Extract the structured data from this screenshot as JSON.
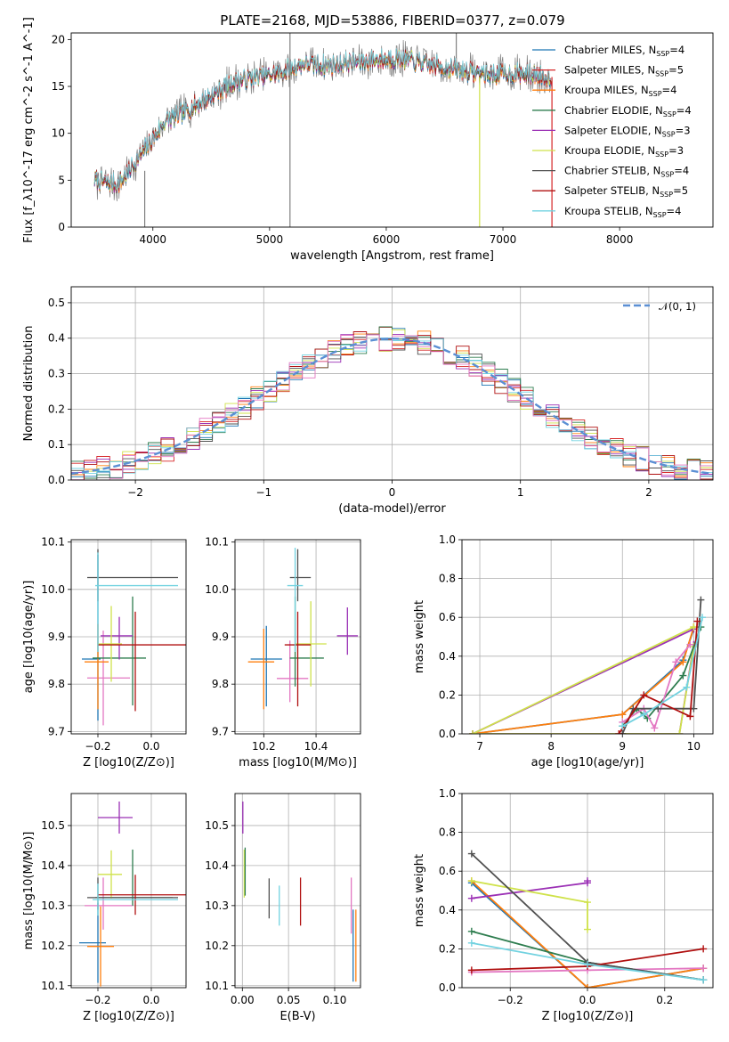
{
  "figure_title": "PLATE=2168, MJD=53886, FIBERID=0377, z=0.079",
  "models": [
    {
      "name": "Chabrier MILES",
      "n": "4",
      "color": "#1f77b4"
    },
    {
      "name": "Salpeter MILES",
      "n": "5",
      "color": "#d62728"
    },
    {
      "name": "Kroupa MILES",
      "n": "4",
      "color": "#ff7f0e"
    },
    {
      "name": "Chabrier ELODIE",
      "n": "4",
      "color": "#2e7d4f"
    },
    {
      "name": "Salpeter ELODIE",
      "n": "3",
      "color": "#9b30b5"
    },
    {
      "name": "Kroupa ELODIE",
      "n": "3",
      "color": "#cfe24a"
    },
    {
      "name": "Chabrier STELIB",
      "n": "4",
      "color": "#505050"
    },
    {
      "name": "Salpeter STELIB",
      "n": "5",
      "color": "#b01010"
    },
    {
      "name": "Kroupa STELIB",
      "n": "4",
      "color": "#72d2e0"
    }
  ],
  "chart_data": [
    {
      "id": "spectrum",
      "type": "line",
      "xlabel": "wavelength [Angstrom, rest frame]",
      "ylabel": "Flux [f_λ10^-17 erg cm^-2 s^-1 A^-1]",
      "xlim": [
        3300,
        8800
      ],
      "ylim": [
        0,
        20.7
      ],
      "xticks": [
        4000,
        5000,
        6000,
        7000,
        8000
      ],
      "yticks": [
        0,
        5,
        10,
        15,
        20
      ],
      "data_color": "#808080",
      "continuum": {
        "x": [
          3500,
          3700,
          3950,
          4100,
          4300,
          4500,
          4700,
          4900,
          5100,
          5300,
          5500,
          5700,
          5900,
          6100,
          6300,
          6500,
          6700,
          6900,
          7100,
          7300,
          7420
        ],
        "y": [
          5.0,
          4.5,
          8.5,
          11.2,
          12.5,
          14.0,
          15.5,
          16.0,
          16.5,
          17.5,
          17.2,
          17.6,
          17.8,
          18.0,
          17.5,
          17.0,
          16.6,
          16.3,
          16.4,
          16.2,
          16.0
        ]
      },
      "legend_position": "upper right"
    },
    {
      "id": "residuals",
      "type": "histogram",
      "xlabel": "(data-model)/error",
      "ylabel": "Normed distribution",
      "xlim": [
        -2.5,
        2.5
      ],
      "ylim": [
        0,
        0.545
      ],
      "xticks": [
        -2,
        -1,
        0,
        1,
        2
      ],
      "yticks": [
        0.0,
        0.1,
        0.2,
        0.3,
        0.4,
        0.5
      ],
      "bin_width": 0.1,
      "normal_label": "𝒩(0, 1)",
      "normal_color": "#5b8fd4",
      "legend_position": "upper right"
    },
    {
      "id": "age_vs_Z",
      "type": "errorbar",
      "xlabel": "Z [log10(Z/Z⊙)]",
      "ylabel": "age [log10(age/yr)]",
      "xlim": [
        -0.3,
        0.13
      ],
      "ylim": [
        9.695,
        10.105
      ],
      "xticks": [
        -0.2,
        0.0
      ],
      "yticks": [
        9.7,
        9.8,
        9.9,
        10.0,
        10.1
      ],
      "points": [
        {
          "x": -0.2,
          "xerr": [
            0.06,
            0.01
          ],
          "y": 9.853,
          "yerr": [
            0.13,
            0.22
          ],
          "color": "#1f77b4"
        },
        {
          "x": -0.18,
          "xerr": [
            0.06,
            0.1
          ],
          "y": 9.813,
          "yerr": [
            0.1,
            0.1
          ],
          "color": "#e377c2"
        },
        {
          "x": -0.2,
          "xerr": [
            0.05,
            0.04
          ],
          "y": 9.847,
          "yerr": [
            0.1,
            0.08
          ],
          "color": "#ff7f0e"
        },
        {
          "x": -0.07,
          "xerr": [
            0.15,
            0.05
          ],
          "y": 9.855,
          "yerr": [
            0.1,
            0.13
          ],
          "color": "#2e7d4f"
        },
        {
          "x": -0.12,
          "xerr": [
            0.07,
            0.05
          ],
          "y": 9.902,
          "yerr": [
            0.05,
            0.04
          ],
          "color": "#9b30b5"
        },
        {
          "x": -0.15,
          "xerr": [
            0.05,
            0.04
          ],
          "y": 9.885,
          "yerr": [
            0.08,
            0.08
          ],
          "color": "#cfe24a"
        },
        {
          "x": -0.2,
          "xerr": [
            0.04,
            0.3
          ],
          "y": 10.025,
          "yerr": [
            0.05,
            0.06
          ],
          "color": "#505050"
        },
        {
          "x": -0.06,
          "xerr": [
            0.14,
            0.19
          ],
          "y": 9.883,
          "yerr": [
            0.14,
            0.07
          ],
          "color": "#b01010"
        },
        {
          "x": -0.2,
          "xerr": [
            0.01,
            0.3
          ],
          "y": 10.008,
          "yerr": [
            0.14,
            0.07
          ],
          "color": "#72d2e0"
        }
      ]
    },
    {
      "id": "age_vs_mass",
      "type": "errorbar",
      "xlabel": "mass [log10(M/M⊙)]",
      "ylabel": "",
      "xlim": [
        10.09,
        10.57
      ],
      "ylim": [
        9.695,
        10.105
      ],
      "xticks": [
        10.2,
        10.4
      ],
      "yticks": [
        9.7,
        9.8,
        9.9,
        10.0,
        10.1
      ],
      "points": [
        {
          "x": 10.21,
          "xerr": [
            0.06,
            0.06
          ],
          "y": 9.853,
          "yerr": [
            0.1,
            0.07
          ],
          "color": "#1f77b4"
        },
        {
          "x": 10.3,
          "xerr": [
            0.05,
            0.07
          ],
          "y": 9.812,
          "yerr": [
            0.05,
            0.08
          ],
          "color": "#e377c2"
        },
        {
          "x": 10.2,
          "xerr": [
            0.06,
            0.04
          ],
          "y": 9.847,
          "yerr": [
            0.1,
            0.07
          ],
          "color": "#ff7f0e"
        },
        {
          "x": 10.32,
          "xerr": [
            0.02,
            0.11
          ],
          "y": 9.855,
          "yerr": [
            0.06,
            0.13
          ],
          "color": "#2e7d4f"
        },
        {
          "x": 10.52,
          "xerr": [
            0.04,
            0.04
          ],
          "y": 9.902,
          "yerr": [
            0.04,
            0.06
          ],
          "color": "#9b30b5"
        },
        {
          "x": 10.38,
          "xerr": [
            0.06,
            0.06
          ],
          "y": 9.885,
          "yerr": [
            0.09,
            0.09
          ],
          "color": "#cfe24a"
        },
        {
          "x": 10.33,
          "xerr": [
            0.03,
            0.05
          ],
          "y": 10.025,
          "yerr": [
            0.05,
            0.06
          ],
          "color": "#505050"
        },
        {
          "x": 10.33,
          "xerr": [
            0.05,
            0.05
          ],
          "y": 9.883,
          "yerr": [
            0.13,
            0.07
          ],
          "color": "#b01010"
        },
        {
          "x": 10.32,
          "xerr": [
            0.03,
            0.03
          ],
          "y": 10.008,
          "yerr": [
            0.14,
            0.08
          ],
          "color": "#72d2e0"
        }
      ]
    },
    {
      "id": "mass_weight_vs_age",
      "type": "line",
      "xlabel": "age [log10(age/yr)]",
      "ylabel": "mass weight",
      "xlim": [
        6.75,
        10.27
      ],
      "ylim": [
        0,
        1.0
      ],
      "xticks": [
        7,
        8,
        9,
        10
      ],
      "yticks": [
        0.0,
        0.2,
        0.4,
        0.6,
        0.8,
        1.0
      ],
      "series": [
        {
          "color": "#1f77b4",
          "x": [
            6.9,
            9.0,
            9.85,
            10.0
          ],
          "y": [
            0.0,
            0.1,
            0.38,
            0.54
          ]
        },
        {
          "color": "#ff7f0e",
          "x": [
            6.9,
            9.0,
            9.85,
            10.0
          ],
          "y": [
            0.0,
            0.1,
            0.37,
            0.55
          ]
        },
        {
          "color": "#9b30b5",
          "x": [
            10.0,
            6.9,
            9.0,
            9.8,
            10.0
          ],
          "y": [
            0.54,
            0.0,
            0.0,
            0.0,
            0.46
          ]
        },
        {
          "color": "#cfe24a",
          "x": [
            10.0,
            6.9,
            9.0,
            9.8,
            10.0
          ],
          "y": [
            0.55,
            0.0,
            0.0,
            0.0,
            0.45
          ]
        },
        {
          "color": "#2e7d4f",
          "x": [
            9.0,
            9.2,
            9.35,
            9.85,
            10.1
          ],
          "y": [
            0.04,
            0.13,
            0.08,
            0.3,
            0.55
          ]
        },
        {
          "color": "#e377c2",
          "x": [
            9.0,
            9.3,
            9.45,
            9.75,
            9.95
          ],
          "y": [
            0.06,
            0.13,
            0.03,
            0.37,
            0.46
          ]
        },
        {
          "color": "#505050",
          "x": [
            9.0,
            9.15,
            9.5,
            10.0,
            10.1
          ],
          "y": [
            0.0,
            0.13,
            0.13,
            0.13,
            0.69
          ]
        },
        {
          "color": "#b01010",
          "x": [
            8.95,
            9.3,
            9.95,
            10.05
          ],
          "y": [
            0.0,
            0.2,
            0.09,
            0.58
          ]
        },
        {
          "color": "#72d2e0",
          "x": [
            9.0,
            9.3,
            9.9,
            10.12
          ],
          "y": [
            0.04,
            0.1,
            0.24,
            0.6
          ]
        }
      ]
    },
    {
      "id": "mass_vs_Z",
      "type": "errorbar",
      "xlabel": "Z [log10(Z/Z⊙)]",
      "ylabel": "mass [log10(M/M⊙)]",
      "xlim": [
        -0.3,
        0.13
      ],
      "ylim": [
        10.095,
        10.58
      ],
      "xticks": [
        -0.2,
        0.0
      ],
      "yticks": [
        10.1,
        10.2,
        10.3,
        10.4,
        10.5
      ],
      "points": [
        {
          "x": -0.2,
          "xerr": [
            0.07,
            0.03
          ],
          "y": 10.207,
          "yerr": [
            0.1,
            0.1
          ],
          "color": "#1f77b4"
        },
        {
          "x": -0.18,
          "xerr": [
            0.07,
            0.11
          ],
          "y": 10.3,
          "yerr": [
            0.06,
            0.07
          ],
          "color": "#e377c2"
        },
        {
          "x": -0.19,
          "xerr": [
            0.05,
            0.05
          ],
          "y": 10.198,
          "yerr": [
            0.1,
            0.1
          ],
          "color": "#ff7f0e"
        },
        {
          "x": -0.07,
          "xerr": [
            0.14,
            0.15
          ],
          "y": 10.32,
          "yerr": [
            0.02,
            0.12
          ],
          "color": "#2e7d4f"
        },
        {
          "x": -0.12,
          "xerr": [
            0.08,
            0.05
          ],
          "y": 10.52,
          "yerr": [
            0.04,
            0.04
          ],
          "color": "#9b30b5"
        },
        {
          "x": -0.15,
          "xerr": [
            0.05,
            0.04
          ],
          "y": 10.378,
          "yerr": [
            0.06,
            0.06
          ],
          "color": "#cfe24a"
        },
        {
          "x": -0.2,
          "xerr": [
            0.04,
            0.3
          ],
          "y": 10.32,
          "yerr": [
            0.03,
            0.05
          ],
          "color": "#505050"
        },
        {
          "x": -0.06,
          "xerr": [
            0.14,
            0.19
          ],
          "y": 10.327,
          "yerr": [
            0.05,
            0.05
          ],
          "color": "#b01010"
        },
        {
          "x": -0.2,
          "xerr": [
            0.02,
            0.3
          ],
          "y": 10.315,
          "yerr": [
            0.04,
            0.04
          ],
          "color": "#72d2e0"
        }
      ]
    },
    {
      "id": "mass_vs_EBV",
      "type": "errorbar",
      "xlabel": "E(B-V)",
      "ylabel": "",
      "xlim": [
        -0.008,
        0.128
      ],
      "ylim": [
        10.095,
        10.58
      ],
      "xticks": [
        0.0,
        0.05,
        0.1
      ],
      "xtick_labels": [
        "0.00",
        "0.05",
        "0.10"
      ],
      "yticks": [
        10.1,
        10.2,
        10.3,
        10.4,
        10.5
      ],
      "points": [
        {
          "x": 0.0005,
          "xerr": [
            0,
            0
          ],
          "y": 10.52,
          "yerr": [
            0.04,
            0.04
          ],
          "color": "#9b30b5"
        },
        {
          "x": 0.002,
          "xerr": [
            0,
            0
          ],
          "y": 10.38,
          "yerr": [
            0.06,
            0.06
          ],
          "color": "#cfe24a"
        },
        {
          "x": 0.003,
          "xerr": [
            0,
            0
          ],
          "y": 10.385,
          "yerr": [
            0.06,
            0.06
          ],
          "color": "#2e7d4f"
        },
        {
          "x": 0.029,
          "xerr": [
            0,
            0
          ],
          "y": 10.318,
          "yerr": [
            0.05,
            0.05
          ],
          "color": "#505050"
        },
        {
          "x": 0.04,
          "xerr": [
            0,
            0
          ],
          "y": 10.3,
          "yerr": [
            0.05,
            0.05
          ],
          "color": "#72d2e0"
        },
        {
          "x": 0.063,
          "xerr": [
            0,
            0
          ],
          "y": 10.31,
          "yerr": [
            0.06,
            0.06
          ],
          "color": "#b01010"
        },
        {
          "x": 0.118,
          "xerr": [
            0,
            0
          ],
          "y": 10.3,
          "yerr": [
            0.07,
            0.07
          ],
          "color": "#e377c2"
        },
        {
          "x": 0.12,
          "xerr": [
            0,
            0
          ],
          "y": 10.2,
          "yerr": [
            0.09,
            0.09
          ],
          "color": "#1f77b4"
        },
        {
          "x": 0.123,
          "xerr": [
            0,
            0
          ],
          "y": 10.2,
          "yerr": [
            0.09,
            0.09
          ],
          "color": "#ff7f0e"
        }
      ]
    },
    {
      "id": "mass_weight_vs_Z",
      "type": "line",
      "xlabel": "Z [log10(Z/Z⊙)]",
      "ylabel": "mass weight",
      "xlim": [
        -0.325,
        0.325
      ],
      "ylim": [
        0,
        1.0
      ],
      "xticks": [
        -0.2,
        0.0,
        0.2
      ],
      "yticks": [
        0.0,
        0.2,
        0.4,
        0.6,
        0.8,
        1.0
      ],
      "series": [
        {
          "color": "#1f77b4",
          "x": [
            -0.3,
            0.0,
            0.3
          ],
          "y": [
            0.54,
            0.0,
            0.1
          ]
        },
        {
          "color": "#ff7f0e",
          "x": [
            -0.3,
            0.0,
            0.3
          ],
          "y": [
            0.55,
            0.0,
            0.1
          ]
        },
        {
          "color": "#9b30b5",
          "x": [
            -0.3,
            0.0,
            0.0
          ],
          "y": [
            0.46,
            0.54,
            0.55
          ]
        },
        {
          "color": "#cfe24a",
          "x": [
            -0.3,
            0.0,
            0.0
          ],
          "y": [
            0.55,
            0.44,
            0.3
          ]
        },
        {
          "color": "#2e7d4f",
          "x": [
            -0.3,
            0.0,
            0.3
          ],
          "y": [
            0.29,
            0.13,
            0.04
          ]
        },
        {
          "color": "#e377c2",
          "x": [
            -0.3,
            0.0,
            0.3
          ],
          "y": [
            0.08,
            0.09,
            0.1
          ]
        },
        {
          "color": "#505050",
          "x": [
            -0.3,
            0.0,
            0.3
          ],
          "y": [
            0.69,
            0.13,
            0.04
          ]
        },
        {
          "color": "#b01010",
          "x": [
            -0.3,
            0.0,
            0.3
          ],
          "y": [
            0.09,
            0.11,
            0.2
          ]
        },
        {
          "color": "#72d2e0",
          "x": [
            -0.3,
            0.0,
            0.3
          ],
          "y": [
            0.23,
            0.12,
            0.04
          ]
        }
      ]
    }
  ]
}
